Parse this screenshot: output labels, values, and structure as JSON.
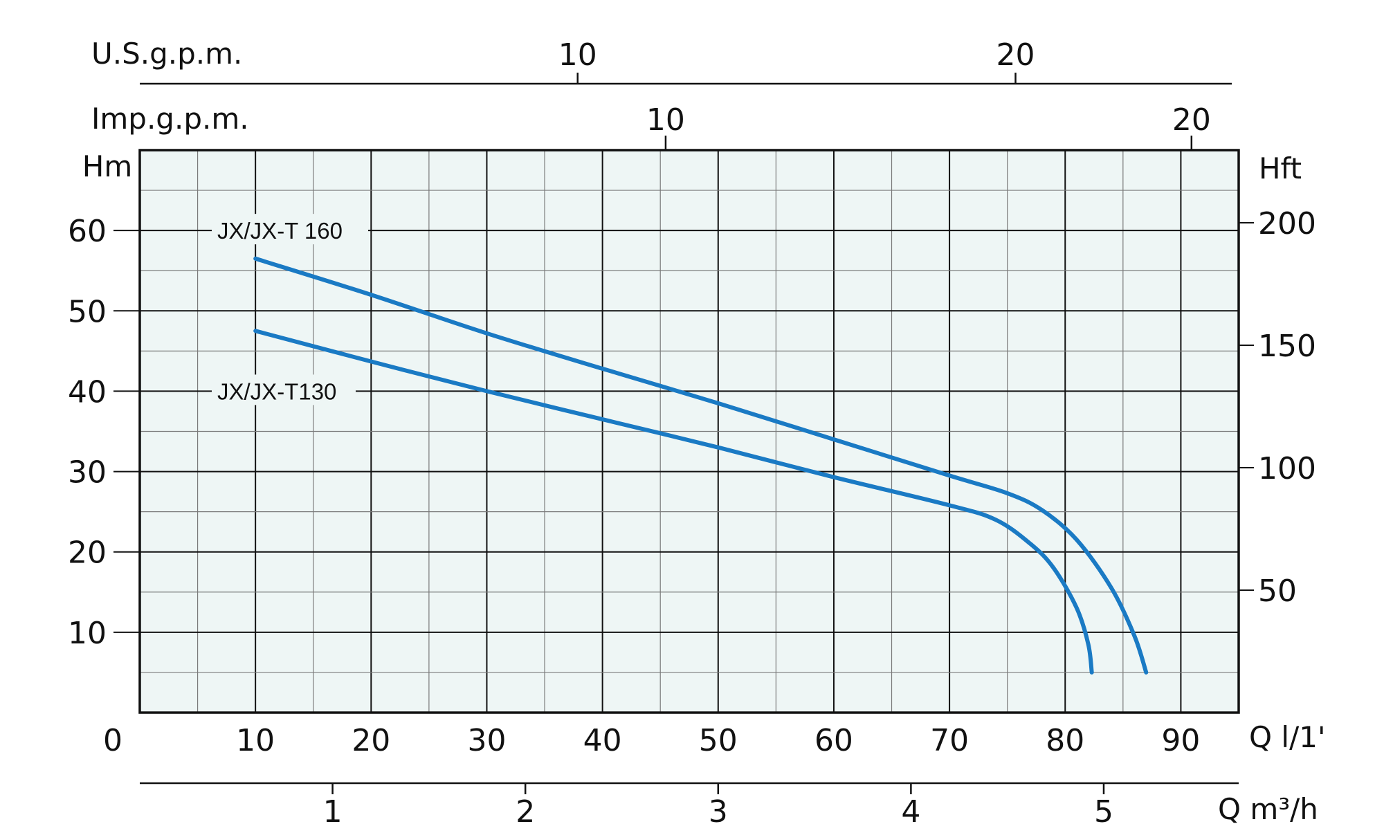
{
  "colors": {
    "plot_background": "#eef6f5",
    "curve": "#1a7ac4",
    "grid_major": "#111111",
    "grid_minor": "#7a7a7a",
    "text": "#111111"
  },
  "chart_data": {
    "type": "line",
    "title": "",
    "x_axis_primary": {
      "unit_label": "Q l/1'",
      "range": [
        0,
        95
      ],
      "ticks": [
        0,
        10,
        20,
        30,
        40,
        50,
        60,
        70,
        80,
        90
      ],
      "tick_labels": [
        "0",
        "10",
        "20",
        "30",
        "40",
        "50",
        "60",
        "70",
        "80",
        "90"
      ]
    },
    "x_axis_m3h": {
      "unit_label": "Q m³/h",
      "ticks": [
        1,
        2,
        3,
        4,
        5
      ],
      "tick_labels": [
        "1",
        "2",
        "3",
        "4",
        "5"
      ]
    },
    "x_axis_us_gpm": {
      "unit_label": "U.S.g.p.m.",
      "ticks": [
        10,
        20
      ],
      "tick_labels": [
        "10",
        "20"
      ]
    },
    "x_axis_imp_gpm": {
      "unit_label": "Imp.g.p.m.",
      "ticks": [
        10,
        20
      ],
      "tick_labels": [
        "10",
        "20"
      ]
    },
    "y_axis_left": {
      "unit_label": "Hm",
      "range": [
        0,
        70
      ],
      "ticks": [
        10,
        20,
        30,
        40,
        50,
        60
      ],
      "tick_labels": [
        "10",
        "20",
        "30",
        "40",
        "50",
        "60"
      ]
    },
    "y_axis_right": {
      "unit_label": "Hft",
      "ticks": [
        50,
        100,
        150,
        200
      ],
      "tick_labels": [
        "50",
        "100",
        "150",
        "200"
      ]
    },
    "grid": true,
    "series": [
      {
        "name": "JX/JX-T 160",
        "x": [
          10,
          20,
          30,
          40,
          50,
          60,
          70,
          75,
          78,
          81,
          84,
          86,
          87
        ],
        "y": [
          56.5,
          52,
          47.2,
          42.8,
          38.5,
          34,
          29.5,
          27.3,
          25.2,
          21.5,
          15.5,
          9.5,
          5
        ]
      },
      {
        "name": "JX/JX-T130",
        "x": [
          10,
          20,
          30,
          40,
          50,
          60,
          70,
          74,
          77,
          79,
          81,
          82,
          82.3
        ],
        "y": [
          47.5,
          43.7,
          40,
          36.5,
          33,
          29.3,
          25.8,
          24,
          21,
          18,
          13,
          8.5,
          5
        ]
      }
    ]
  }
}
